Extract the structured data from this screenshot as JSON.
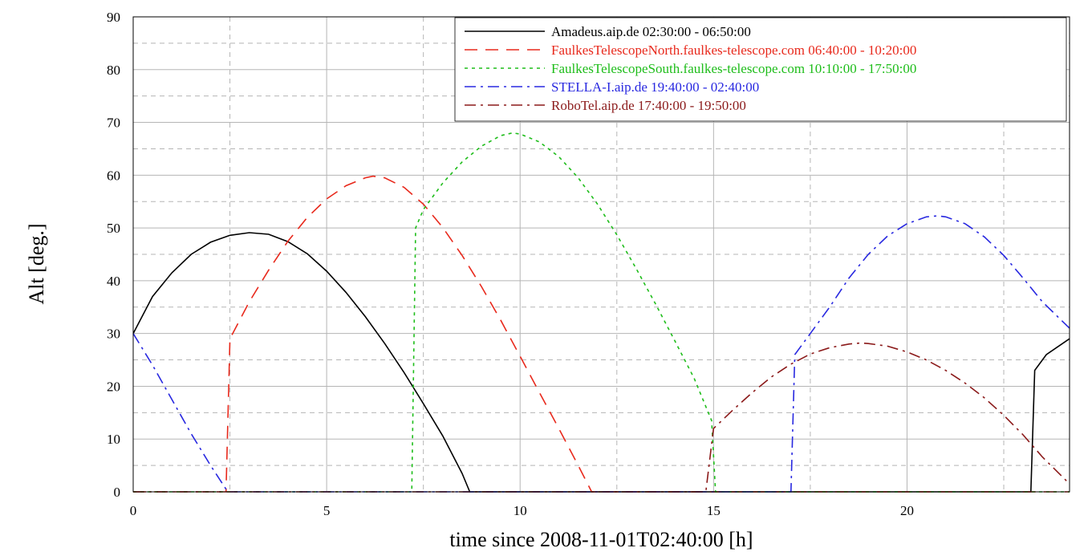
{
  "chart_data": {
    "type": "line",
    "title": "",
    "xlabel": "time since 2008-11-01T02:40:00 [h]",
    "ylabel": "Alt [deg.]",
    "xlim": [
      0,
      24.2
    ],
    "ylim": [
      0,
      90
    ],
    "xticks": [
      0,
      5,
      10,
      15,
      20
    ],
    "yticks": [
      0,
      10,
      20,
      30,
      40,
      50,
      60,
      70,
      80,
      90
    ],
    "grid": {
      "major_x": [
        0,
        5,
        10,
        15,
        20
      ],
      "minor_x": [
        2.5,
        7.5,
        12.5,
        17.5,
        22.5
      ],
      "major_y": [
        10,
        20,
        30,
        40,
        50,
        60,
        70,
        80
      ],
      "minor_y": [
        5,
        15,
        25,
        35,
        45,
        55,
        65,
        75,
        85
      ]
    },
    "legend_position": "top-right",
    "series": [
      {
        "name": "Amadeus.aip.de 02:30:00 - 06:50:00",
        "color": "#000000",
        "dash": "solid",
        "points": [
          [
            0,
            30
          ],
          [
            0.5,
            37
          ],
          [
            1,
            41.5
          ],
          [
            1.5,
            45
          ],
          [
            2,
            47.3
          ],
          [
            2.5,
            48.6
          ],
          [
            3,
            49.1
          ],
          [
            3.5,
            48.8
          ],
          [
            4,
            47.4
          ],
          [
            4.5,
            45.1
          ],
          [
            5,
            41.8
          ],
          [
            5.5,
            37.8
          ],
          [
            6,
            33.2
          ],
          [
            6.5,
            28.1
          ],
          [
            7,
            22.6
          ],
          [
            7.5,
            16.7
          ],
          [
            8,
            10.6
          ],
          [
            8.5,
            3.5
          ],
          [
            8.7,
            0
          ],
          [
            23.2,
            0
          ],
          [
            23.3,
            23
          ],
          [
            23.6,
            26
          ],
          [
            24.2,
            29
          ]
        ]
      },
      {
        "name": "FaulkesTelescopeNorth.faulkes-telescope.com 06:40:00 - 10:20:00",
        "color": "#e8291c",
        "dash": "long-dash",
        "points": [
          [
            0,
            0
          ],
          [
            2.4,
            0
          ],
          [
            2.5,
            29
          ],
          [
            3,
            36
          ],
          [
            3.5,
            42
          ],
          [
            4,
            47.5
          ],
          [
            4.5,
            52
          ],
          [
            5,
            55.5
          ],
          [
            5.5,
            58
          ],
          [
            6,
            59.5
          ],
          [
            6.2,
            59.8
          ],
          [
            6.5,
            59.5
          ],
          [
            7,
            57.7
          ],
          [
            7.5,
            54.5
          ],
          [
            8,
            50.1
          ],
          [
            8.5,
            44.8
          ],
          [
            9,
            38.9
          ],
          [
            9.5,
            32.5
          ],
          [
            10,
            25.7
          ],
          [
            10.5,
            18.8
          ],
          [
            11,
            12
          ],
          [
            11.5,
            5
          ],
          [
            11.85,
            0
          ],
          [
            24.2,
            0
          ]
        ]
      },
      {
        "name": "FaulkesTelescopeSouth.faulkes-telescope.com 10:10:00 - 17:50:00",
        "color": "#1ebd1a",
        "dash": "dotted",
        "points": [
          [
            0,
            0
          ],
          [
            7.2,
            0
          ],
          [
            7.3,
            50
          ],
          [
            7.5,
            53.5
          ],
          [
            8,
            58.5
          ],
          [
            8.5,
            62.5
          ],
          [
            9,
            65.5
          ],
          [
            9.5,
            67.5
          ],
          [
            9.8,
            68
          ],
          [
            10,
            67.8
          ],
          [
            10.5,
            66.3
          ],
          [
            11,
            63.5
          ],
          [
            11.5,
            59.5
          ],
          [
            12,
            54.5
          ],
          [
            12.5,
            48.7
          ],
          [
            13,
            42.3
          ],
          [
            13.5,
            35.6
          ],
          [
            14,
            28.6
          ],
          [
            14.5,
            21.5
          ],
          [
            14.95,
            13.5
          ],
          [
            15.05,
            0
          ],
          [
            24.2,
            0
          ]
        ]
      },
      {
        "name": "STELLA-I.aip.de 19:40:00 - 02:40:00",
        "color": "#2828e0",
        "dash": "dash-dot",
        "points": [
          [
            0,
            30
          ],
          [
            0.5,
            24
          ],
          [
            1,
            17.5
          ],
          [
            1.5,
            11
          ],
          [
            2,
            5
          ],
          [
            2.4,
            0.5
          ],
          [
            2.5,
            0
          ],
          [
            17,
            0
          ],
          [
            17.1,
            26
          ],
          [
            17.5,
            30
          ],
          [
            18,
            35
          ],
          [
            18.5,
            40.5
          ],
          [
            19,
            45
          ],
          [
            19.5,
            48.5
          ],
          [
            20,
            50.8
          ],
          [
            20.5,
            52.1
          ],
          [
            20.8,
            52.3
          ],
          [
            21,
            52.1
          ],
          [
            21.5,
            50.8
          ],
          [
            22,
            48.3
          ],
          [
            22.5,
            44.8
          ],
          [
            23,
            40.5
          ],
          [
            23.5,
            36
          ],
          [
            24.2,
            31
          ]
        ]
      },
      {
        "name": "RoboTel.aip.de 17:40:00 - 19:50:00",
        "color": "#8b1a1a",
        "dash": "dash-dot",
        "points": [
          [
            0,
            0
          ],
          [
            14.8,
            0
          ],
          [
            15,
            12
          ],
          [
            15.5,
            15.5
          ],
          [
            16,
            18.8
          ],
          [
            16.5,
            21.8
          ],
          [
            17,
            24.2
          ],
          [
            17.5,
            26.1
          ],
          [
            18,
            27.3
          ],
          [
            18.5,
            28
          ],
          [
            18.8,
            28.2
          ],
          [
            19,
            28.1
          ],
          [
            19.5,
            27.6
          ],
          [
            20,
            26.5
          ],
          [
            20.5,
            25
          ],
          [
            21,
            23
          ],
          [
            21.5,
            20.6
          ],
          [
            22,
            17.8
          ],
          [
            22.5,
            14.5
          ],
          [
            23,
            10.8
          ],
          [
            23.5,
            6.6
          ],
          [
            24.2,
            1.5
          ]
        ]
      }
    ]
  }
}
